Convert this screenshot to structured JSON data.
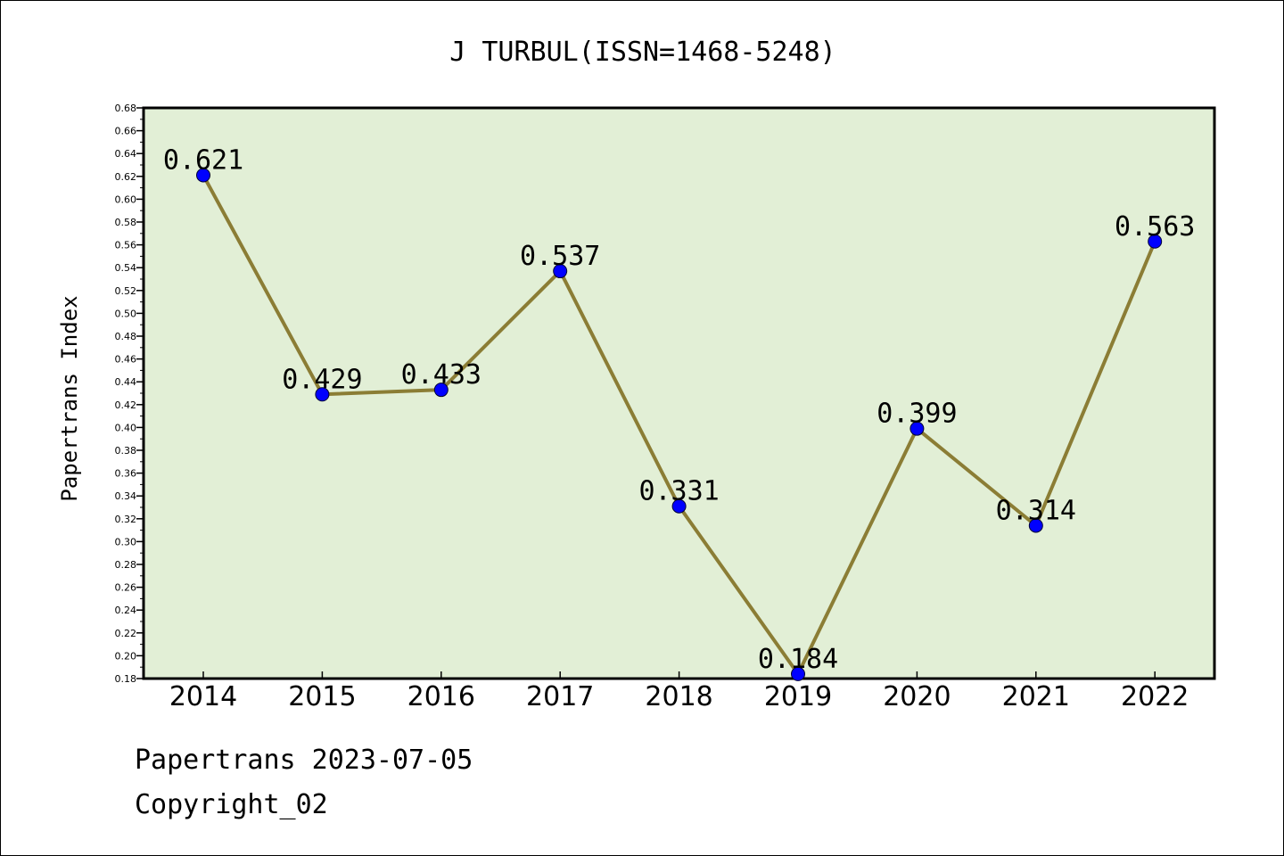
{
  "chart_data": {
    "type": "line",
    "title": "J TURBUL(ISSN=1468-5248)",
    "xlabel": "",
    "ylabel": "Papertrans Index",
    "categories": [
      "2014",
      "2015",
      "2016",
      "2017",
      "2018",
      "2019",
      "2020",
      "2021",
      "2022"
    ],
    "series": [
      {
        "values": [
          0.621,
          0.429,
          0.433,
          0.537,
          0.331,
          0.184,
          0.399,
          0.314,
          0.563
        ],
        "labels": [
          "0.621",
          "0.429",
          "0.433",
          "0.537",
          "0.331",
          "0.184",
          "0.399",
          "0.314",
          "0.563"
        ]
      }
    ],
    "ylim": [
      0.18,
      0.68
    ],
    "yticks": [
      "0.18",
      "0.20",
      "0.22",
      "0.24",
      "0.26",
      "0.28",
      "0.30",
      "0.32",
      "0.34",
      "0.36",
      "0.38",
      "0.40",
      "0.42",
      "0.44",
      "0.46",
      "0.48",
      "0.50",
      "0.52",
      "0.54",
      "0.56",
      "0.58",
      "0.60",
      "0.62",
      "0.64",
      "0.66",
      "0.68"
    ],
    "grid": false,
    "legend": "none",
    "colors": {
      "plot_background": "#e2efd6",
      "line": "#8b7d35",
      "marker": "#0000ff",
      "frame": "#000000"
    }
  },
  "footer": {
    "line1": "Papertrans 2023-07-05",
    "line2": "Copyright_02"
  }
}
